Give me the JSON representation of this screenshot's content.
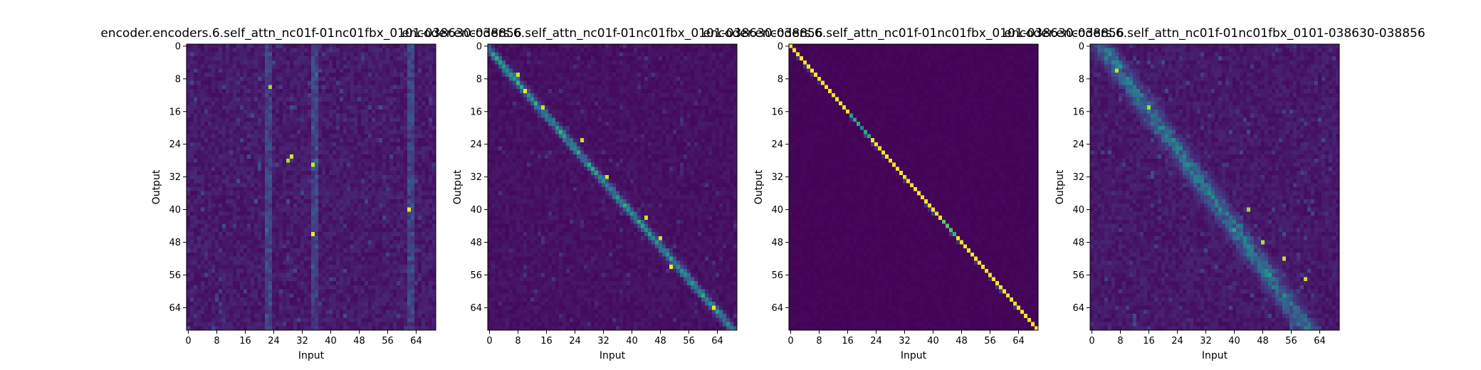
{
  "figure": {
    "background": "#ffffff",
    "colormap": "viridis",
    "panel_count": 4
  },
  "chart_data": [
    {
      "type": "heatmap",
      "pattern": "diffuse",
      "title": "encoder.encoders.6.self_attn_nc01f-01nc01fbx_0101-038630-038856",
      "xlabel": "Input",
      "ylabel": "Output",
      "x_ticks": [
        "0",
        "8",
        "16",
        "24",
        "32",
        "40",
        "48",
        "56",
        "64"
      ],
      "y_ticks": [
        "0",
        "8",
        "16",
        "24",
        "32",
        "40",
        "48",
        "56",
        "64"
      ],
      "grid": false,
      "size": [
        70,
        70
      ],
      "seed": 11
    },
    {
      "type": "heatmap",
      "pattern": "soft-diagonal",
      "title": "encoder.encoders.6.self_attn_nc01f-01nc01fbx_0101-038630-038856",
      "xlabel": "Input",
      "ylabel": "Output",
      "x_ticks": [
        "0",
        "8",
        "16",
        "24",
        "32",
        "40",
        "48",
        "56",
        "64"
      ],
      "y_ticks": [
        "0",
        "8",
        "16",
        "24",
        "32",
        "40",
        "48",
        "56",
        "64"
      ],
      "grid": false,
      "size": [
        70,
        70
      ],
      "seed": 23
    },
    {
      "type": "heatmap",
      "pattern": "sharp-diagonal",
      "title": "encoder.encoders.6.self_attn_nc01f-01nc01fbx_0101-038630-038856",
      "xlabel": "Input",
      "ylabel": "Output",
      "x_ticks": [
        "0",
        "8",
        "16",
        "24",
        "32",
        "40",
        "48",
        "56",
        "64"
      ],
      "y_ticks": [
        "0",
        "8",
        "16",
        "24",
        "32",
        "40",
        "48",
        "56",
        "64"
      ],
      "grid": false,
      "size": [
        70,
        70
      ],
      "seed": 37
    },
    {
      "type": "heatmap",
      "pattern": "blurred-diagonal",
      "title": "encoder.encoders.6.self_attn_nc01f-01nc01fbx_0101-038630-038856",
      "xlabel": "Input",
      "ylabel": "Output",
      "x_ticks": [
        "0",
        "8",
        "16",
        "24",
        "32",
        "40",
        "48",
        "56",
        "64"
      ],
      "y_ticks": [
        "0",
        "8",
        "16",
        "24",
        "32",
        "40",
        "48",
        "56",
        "64"
      ],
      "grid": false,
      "size": [
        70,
        70
      ],
      "seed": 53
    }
  ]
}
